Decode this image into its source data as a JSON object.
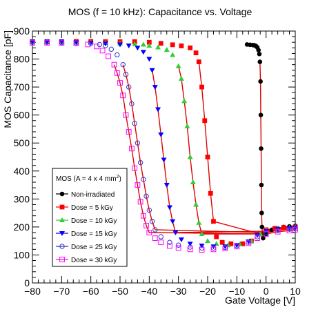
{
  "chart_data": {
    "type": "scatter",
    "title": "MOS (f = 10 kHz): Capacitance vs. Voltage",
    "xlabel": "Gate Voltage [V]",
    "ylabel": "MOS Capacitance [pF]",
    "xlim": [
      -80,
      10
    ],
    "ylim": [
      0,
      900
    ],
    "xticks": [
      -80,
      -70,
      -60,
      -50,
      -40,
      -30,
      -20,
      -10,
      0,
      10
    ],
    "yticks": [
      0,
      100,
      200,
      300,
      400,
      500,
      600,
      700,
      800,
      900
    ],
    "legend": {
      "title": "MOS (A = 4 x 4 mm",
      "title_superscript": "2",
      "title_suffix": ")",
      "placement": "lower-left"
    },
    "series": [
      {
        "name": "Non-irradiated",
        "marker": "filled-circle",
        "color": "#000000",
        "points": [
          [
            -6.5,
            852
          ],
          [
            -5.5,
            851
          ],
          [
            -4.5,
            850
          ],
          [
            -4,
            849
          ],
          [
            -3.5,
            847
          ],
          [
            -3,
            842
          ],
          [
            -2.6,
            832
          ],
          [
            -2.3,
            818
          ],
          [
            -2.1,
            790
          ],
          [
            -1.9,
            720
          ],
          [
            -1.8,
            600
          ],
          [
            -1.7,
            480
          ],
          [
            -1.6,
            350
          ],
          [
            -1.5,
            250
          ],
          [
            -1.4,
            200
          ],
          [
            -1.2,
            175
          ],
          [
            -1,
            160
          ],
          [
            0,
            175
          ],
          [
            2,
            190
          ],
          [
            4,
            195
          ],
          [
            6,
            200
          ],
          [
            8,
            202
          ],
          [
            10,
            204
          ]
        ]
      },
      {
        "name": "Dose = 5 kGy",
        "marker": "filled-square",
        "color": "#ff0000",
        "points": [
          [
            -80,
            862
          ],
          [
            -75,
            862
          ],
          [
            -70,
            862
          ],
          [
            -65,
            863
          ],
          [
            -60,
            863
          ],
          [
            -55,
            862
          ],
          [
            -50,
            862
          ],
          [
            -45,
            862
          ],
          [
            -40,
            860
          ],
          [
            -36,
            856
          ],
          [
            -32,
            851
          ],
          [
            -29,
            847
          ],
          [
            -26,
            840
          ],
          [
            -24,
            822
          ],
          [
            -23,
            790
          ],
          [
            -22,
            700
          ],
          [
            -21,
            580
          ],
          [
            -20,
            450
          ],
          [
            -19,
            320
          ],
          [
            -18,
            220
          ],
          [
            -17,
            165
          ],
          [
            -15,
            145
          ],
          [
            -12,
            140
          ],
          [
            -8,
            140
          ],
          [
            -5,
            150
          ],
          [
            -2,
            175
          ],
          [
            0,
            190
          ],
          [
            3,
            195
          ],
          [
            6,
            198
          ],
          [
            10,
            200
          ]
        ]
      },
      {
        "name": "Dose = 10 kGy",
        "marker": "filled-triangle",
        "color": "#33cc33",
        "points": [
          [
            -80,
            862
          ],
          [
            -75,
            862
          ],
          [
            -70,
            862
          ],
          [
            -65,
            861
          ],
          [
            -60,
            860
          ],
          [
            -55,
            858
          ],
          [
            -50,
            856
          ],
          [
            -45,
            854
          ],
          [
            -42,
            852
          ],
          [
            -40,
            848
          ],
          [
            -37,
            842
          ],
          [
            -34,
            833
          ],
          [
            -32,
            815
          ],
          [
            -30,
            775
          ],
          [
            -29,
            730
          ],
          [
            -28,
            650
          ],
          [
            -27,
            560
          ],
          [
            -26,
            450
          ],
          [
            -25,
            360
          ],
          [
            -24,
            280
          ],
          [
            -23,
            215
          ],
          [
            -22,
            175
          ],
          [
            -20,
            150
          ],
          [
            -17,
            140
          ],
          [
            -13,
            135
          ],
          [
            -9,
            138
          ],
          [
            -5,
            150
          ],
          [
            -2,
            175
          ],
          [
            0,
            188
          ],
          [
            4,
            195
          ],
          [
            8,
            198
          ],
          [
            10,
            200
          ]
        ]
      },
      {
        "name": "Dose = 15 kGy",
        "marker": "filled-triangle-down",
        "color": "#0000ff",
        "points": [
          [
            -80,
            862
          ],
          [
            -75,
            862
          ],
          [
            -70,
            862
          ],
          [
            -65,
            860
          ],
          [
            -60,
            858
          ],
          [
            -55,
            855
          ],
          [
            -50,
            852
          ],
          [
            -47,
            848
          ],
          [
            -44,
            840
          ],
          [
            -42,
            825
          ],
          [
            -40,
            800
          ],
          [
            -39,
            760
          ],
          [
            -38,
            700
          ],
          [
            -37,
            620
          ],
          [
            -36,
            530
          ],
          [
            -35,
            440
          ],
          [
            -34,
            350
          ],
          [
            -33,
            270
          ],
          [
            -32,
            220
          ],
          [
            -31,
            180
          ],
          [
            -29,
            155
          ],
          [
            -26,
            140
          ],
          [
            -22,
            133
          ],
          [
            -18,
            130
          ],
          [
            -14,
            130
          ],
          [
            -10,
            135
          ],
          [
            -6,
            148
          ],
          [
            -3,
            170
          ],
          [
            0,
            185
          ],
          [
            4,
            192
          ],
          [
            8,
            196
          ],
          [
            10,
            198
          ]
        ]
      },
      {
        "name": "Dose = 25 kGy",
        "marker": "open-circle",
        "color": "#3333cc",
        "points": [
          [
            -80,
            860
          ],
          [
            -75,
            860
          ],
          [
            -70,
            859
          ],
          [
            -65,
            858
          ],
          [
            -60,
            856
          ],
          [
            -57,
            852
          ],
          [
            -55,
            848
          ],
          [
            -53,
            835
          ],
          [
            -51,
            815
          ],
          [
            -49,
            780
          ],
          [
            -48,
            745
          ],
          [
            -47,
            700
          ],
          [
            -46,
            640
          ],
          [
            -45,
            570
          ],
          [
            -44,
            500
          ],
          [
            -43,
            430
          ],
          [
            -42,
            370
          ],
          [
            -41,
            310
          ],
          [
            -40,
            260
          ],
          [
            -39,
            220
          ],
          [
            -38,
            190
          ],
          [
            -36,
            165
          ],
          [
            -33,
            145
          ],
          [
            -30,
            135
          ],
          [
            -26,
            128
          ],
          [
            -22,
            125
          ],
          [
            -18,
            125
          ],
          [
            -14,
            127
          ],
          [
            -10,
            133
          ],
          [
            -6,
            145
          ],
          [
            -3,
            165
          ],
          [
            0,
            180
          ],
          [
            4,
            188
          ],
          [
            8,
            192
          ],
          [
            10,
            194
          ]
        ]
      },
      {
        "name": "Dose = 30 kGy",
        "marker": "open-square",
        "color": "#ff00ff",
        "points": [
          [
            -80,
            858
          ],
          [
            -75,
            858
          ],
          [
            -70,
            857
          ],
          [
            -65,
            856
          ],
          [
            -61,
            852
          ],
          [
            -58,
            845
          ],
          [
            -56,
            830
          ],
          [
            -54,
            810
          ],
          [
            -52,
            780
          ],
          [
            -51,
            750
          ],
          [
            -50,
            715
          ],
          [
            -49,
            670
          ],
          [
            -48,
            600
          ],
          [
            -47,
            540
          ],
          [
            -46,
            480
          ],
          [
            -45,
            410
          ],
          [
            -44,
            350
          ],
          [
            -43,
            290
          ],
          [
            -42,
            240
          ],
          [
            -41,
            205
          ],
          [
            -40,
            180
          ],
          [
            -38,
            160
          ],
          [
            -36,
            145
          ],
          [
            -33,
            132
          ],
          [
            -30,
            125
          ],
          [
            -26,
            120
          ],
          [
            -22,
            118
          ],
          [
            -18,
            120
          ],
          [
            -14,
            123
          ],
          [
            -10,
            130
          ],
          [
            -6,
            142
          ],
          [
            -3,
            160
          ],
          [
            0,
            175
          ],
          [
            4,
            183
          ],
          [
            8,
            187
          ],
          [
            10,
            190
          ]
        ]
      }
    ]
  }
}
